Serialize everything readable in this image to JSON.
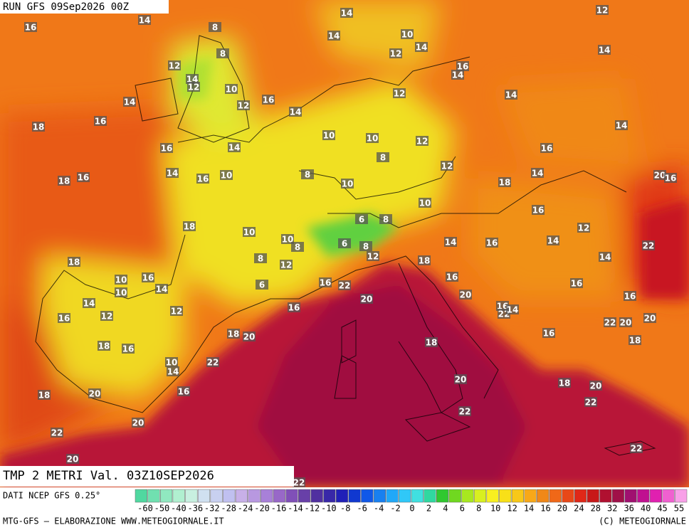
{
  "header": {
    "run": "RUN GFS 09Sep2026 00Z",
    "title": "TMP 2 METRI Val. 03Z10SEP2026",
    "source": "DATI NCEP GFS 0.25°",
    "credit": "MTG-GFS – ELABORAZIONE WWW.METEOGIORNALE.IT",
    "copyright": "(C) METEOGIORNALE"
  },
  "map": {
    "labels": [
      14,
      12,
      16,
      14,
      8,
      14,
      10,
      12,
      14,
      14,
      8,
      12,
      16,
      14,
      14,
      12,
      10,
      12,
      14,
      14,
      16,
      12,
      14,
      16,
      18,
      14,
      10,
      10,
      12,
      16,
      14,
      8,
      16,
      12,
      14,
      16,
      10,
      8,
      14,
      20,
      16,
      18,
      16,
      10,
      18,
      10,
      16,
      18,
      6,
      8,
      10,
      12,
      10,
      8,
      14,
      6,
      8,
      14,
      16,
      22,
      12,
      8,
      12,
      14,
      18,
      18,
      10,
      16,
      14,
      6,
      16,
      22,
      16,
      16,
      10,
      20,
      16,
      14,
      20,
      16,
      12,
      12,
      16,
      22,
      14,
      20,
      16,
      22,
      20,
      18,
      20,
      16,
      18,
      18,
      16,
      18,
      22,
      10,
      14,
      20,
      18,
      20,
      16,
      20,
      18,
      22,
      22,
      20,
      22,
      22,
      20,
      22
    ]
  },
  "legend": {
    "ticks": [
      -60,
      -50,
      -40,
      -36,
      -32,
      -28,
      -24,
      -20,
      -16,
      -14,
      -12,
      -10,
      -8,
      -6,
      -4,
      -2,
      0,
      2,
      4,
      6,
      8,
      10,
      12,
      14,
      16,
      20,
      24,
      28,
      32,
      36,
      40,
      45,
      55
    ],
    "colors": [
      "#50d8a0",
      "#70e0b0",
      "#90e8c0",
      "#b0f0d0",
      "#c8f0e0",
      "#d0e0f0",
      "#c8d0f0",
      "#c0c0f0",
      "#c8b0e8",
      "#b898e0",
      "#a880d8",
      "#9868c8",
      "#8050b8",
      "#6840a8",
      "#5030a0",
      "#3828a8",
      "#2020b8",
      "#1038d0",
      "#1058e8",
      "#1880f0",
      "#20a8f8",
      "#30c8f8",
      "#40e0e0",
      "#30d8a0",
      "#30c830",
      "#70d820",
      "#a8e820",
      "#d8f020",
      "#f8f020",
      "#f8e018",
      "#f8c818",
      "#f8a818",
      "#f08818",
      "#f06818",
      "#e84818",
      "#e02818",
      "#c81818",
      "#b01030",
      "#a01048",
      "#a01070",
      "#c01090",
      "#e020b0",
      "#f060d0",
      "#f8a0e8"
    ]
  }
}
